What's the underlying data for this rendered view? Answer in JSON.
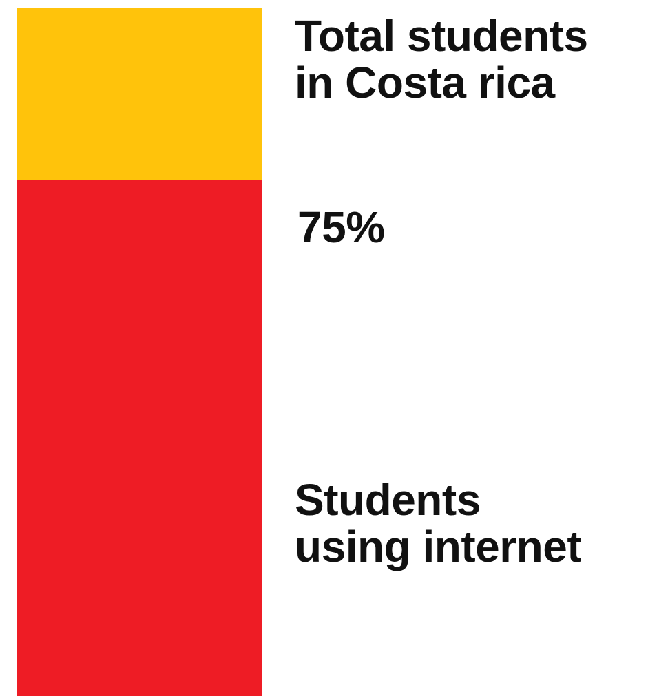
{
  "chart_data": {
    "type": "bar",
    "stacked": true,
    "segments": [
      {
        "name": "Total students in Costa rica",
        "value": 100,
        "color": "#FFC30B"
      },
      {
        "name": "Students using internet",
        "value": 75,
        "color": "#EE1C25"
      }
    ],
    "annotation": "75%",
    "labels": {
      "total": "Total students\nin Costa rica",
      "internet": "Students\nusing internet"
    },
    "ylim": [
      0,
      100
    ]
  }
}
